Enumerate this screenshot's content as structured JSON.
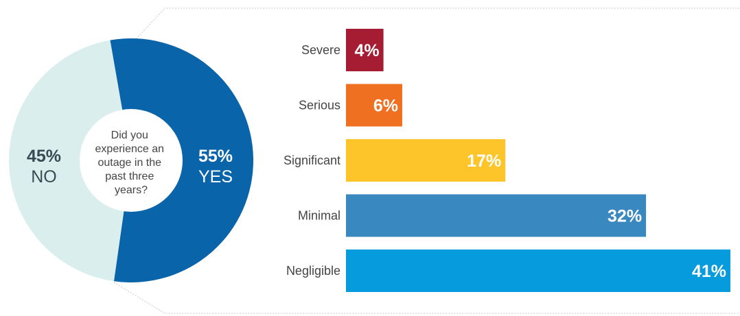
{
  "chart_data": [
    {
      "type": "pie",
      "title": "",
      "center_text": [
        "Did you",
        "experience an",
        "outage in the",
        "past three",
        "years?"
      ],
      "slices": [
        {
          "label": "YES",
          "value": 55,
          "display": "55%",
          "color": "#0a64aa",
          "label_color": "#ffffff"
        },
        {
          "label": "NO",
          "value": 45,
          "display": "45%",
          "color": "#dbeeee",
          "label_color": "#3a4a55"
        }
      ]
    },
    {
      "type": "bar",
      "orientation": "horizontal",
      "title": "",
      "xlabel": "",
      "ylabel": "",
      "xlim": [
        0,
        41
      ],
      "categories": [
        "Severe",
        "Serious",
        "Significant",
        "Minimal",
        "Negligible"
      ],
      "values": [
        4,
        6,
        17,
        32,
        41
      ],
      "value_labels": [
        "4%",
        "6%",
        "17%",
        "32%",
        "41%"
      ],
      "colors": [
        "#a61d33",
        "#f07022",
        "#fdc52a",
        "#3a88c0",
        "#069bdc"
      ],
      "grid": false
    }
  ]
}
